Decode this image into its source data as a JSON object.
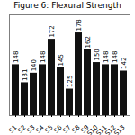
{
  "chart_data": {
    "type": "bar",
    "title": "Figure 6: Flexural Strength",
    "categories": [
      "S1",
      "S2",
      "S3",
      "S4",
      "S5",
      "S6",
      "S7",
      "S8",
      "S9",
      "S10",
      "S11",
      "S12",
      "S13"
    ],
    "values": [
      148,
      131,
      140,
      148,
      172,
      145,
      125,
      178,
      162,
      150,
      148,
      148,
      142
    ],
    "color": "#111111",
    "ylim": [
      100,
      195
    ],
    "data_labels": true,
    "tick_labels": "x",
    "grid": false
  }
}
